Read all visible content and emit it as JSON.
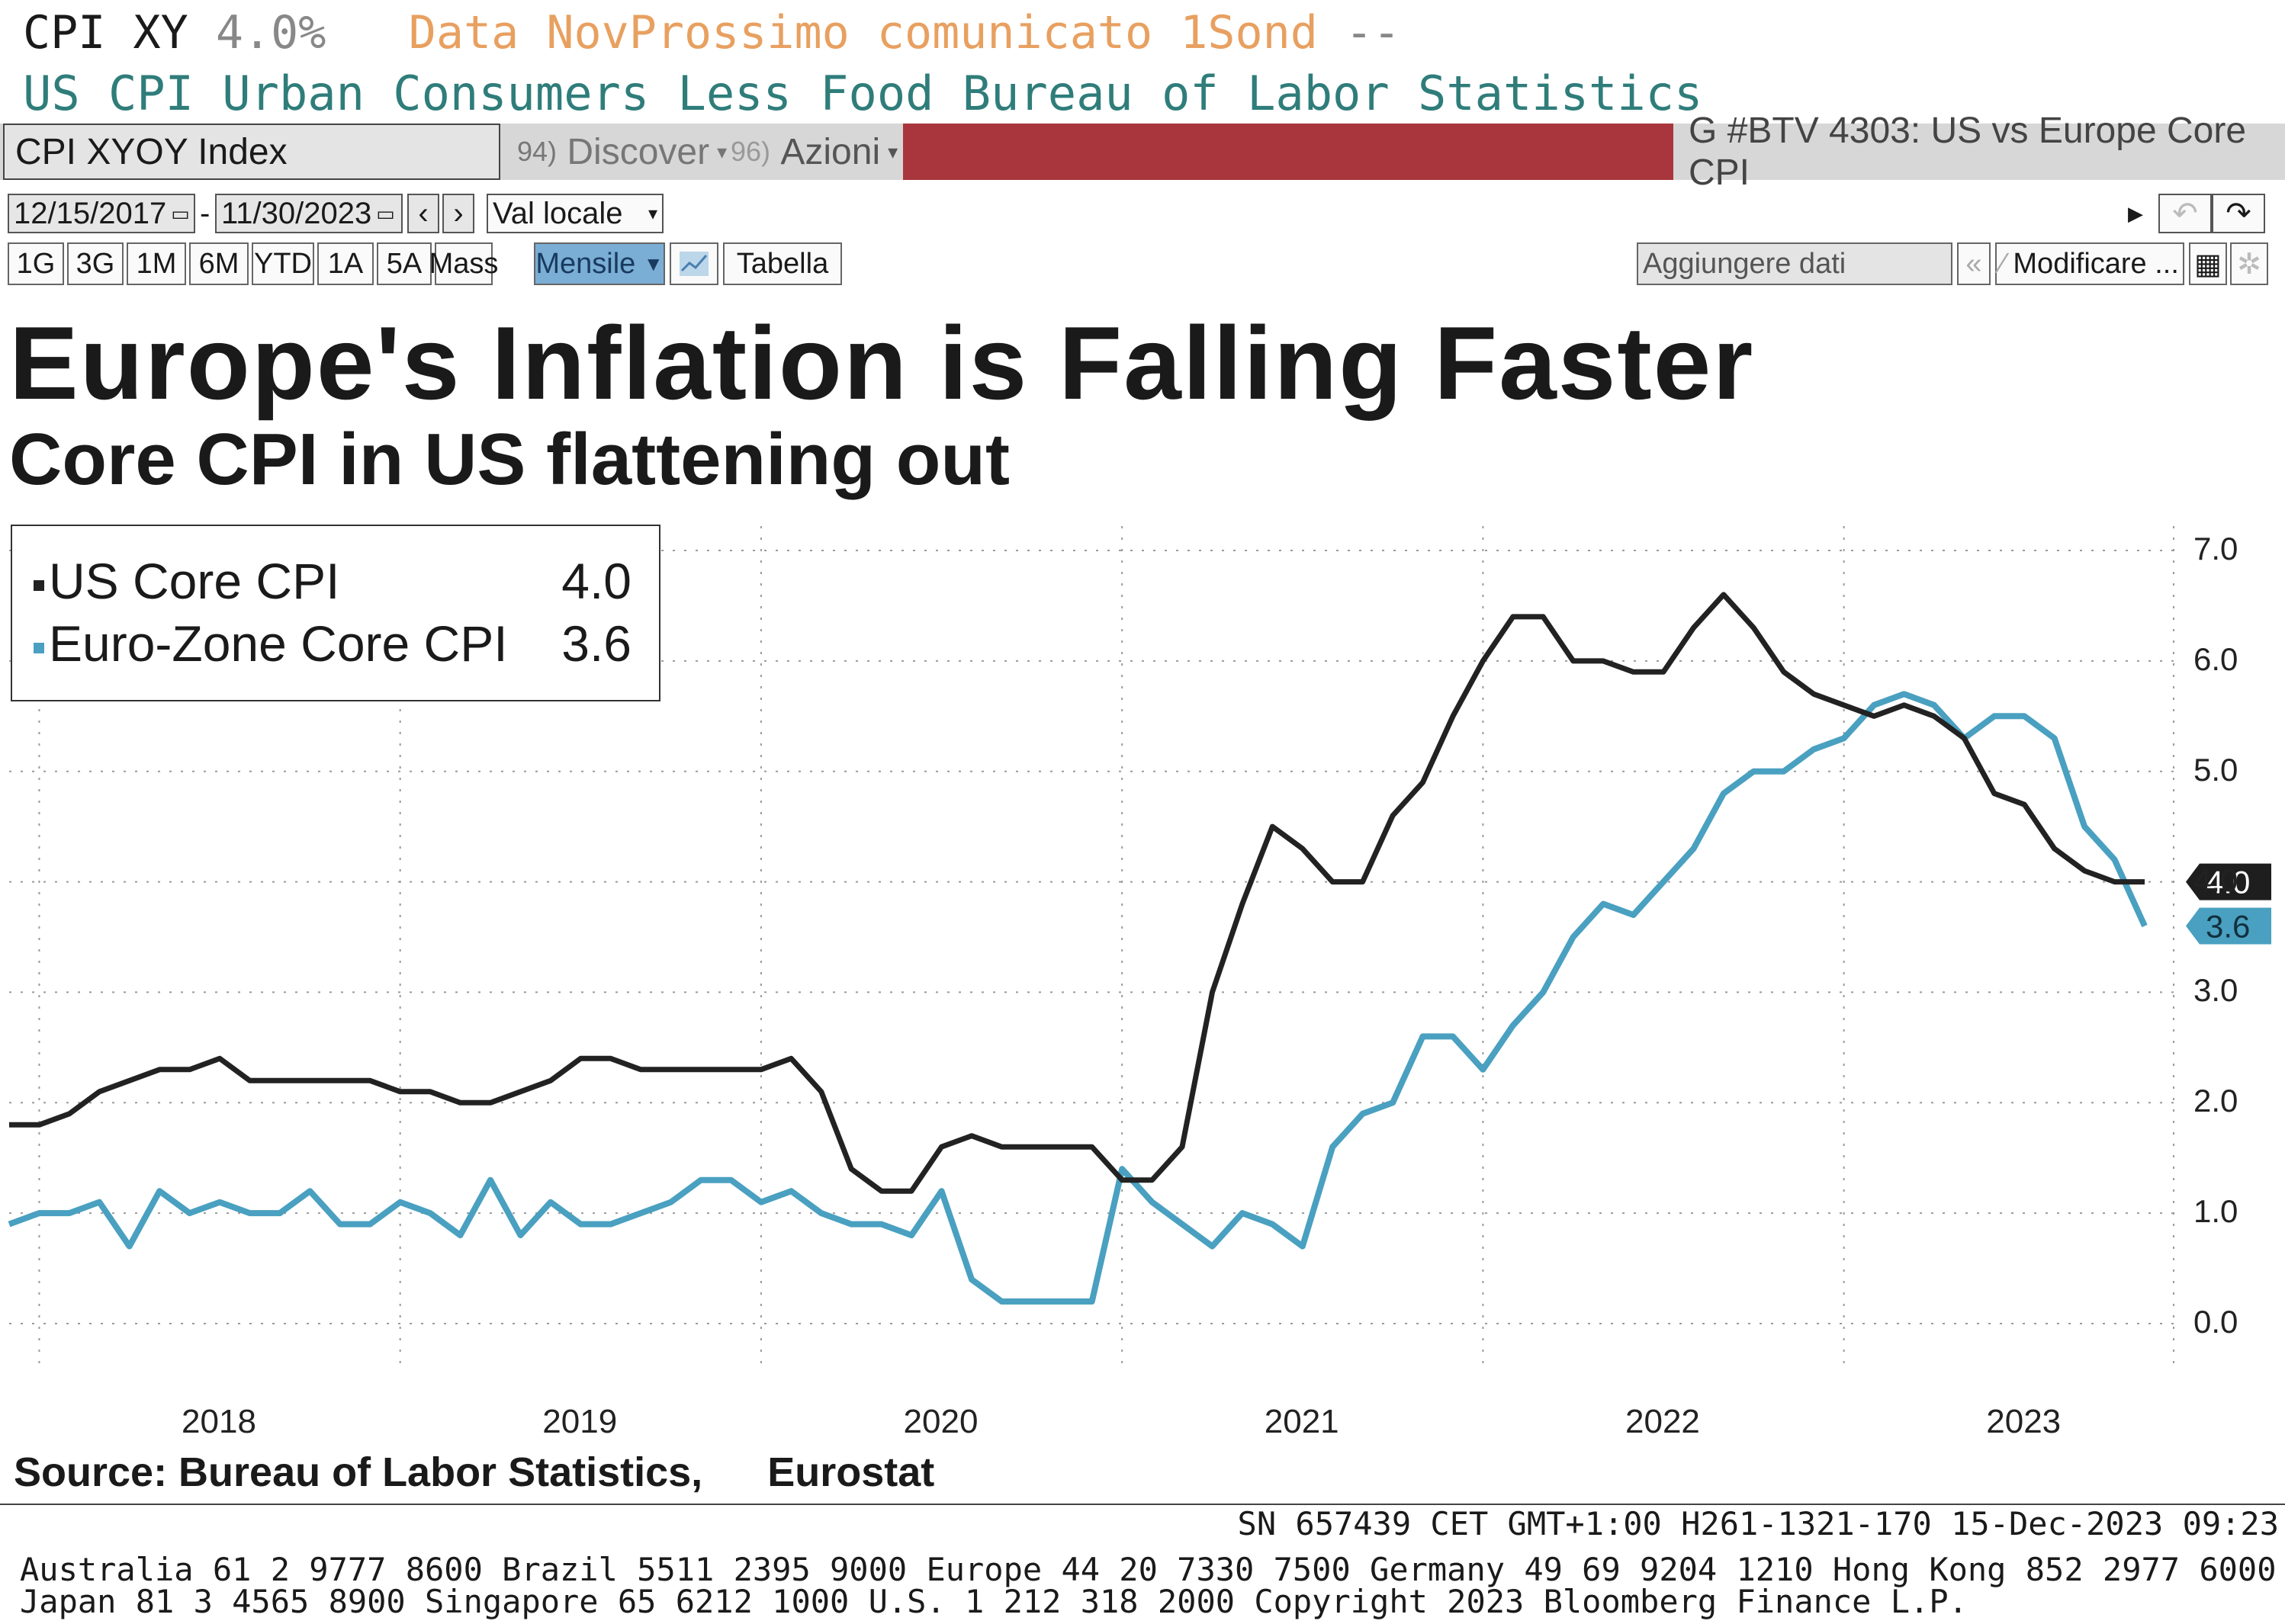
{
  "header": {
    "ticker": "CPI XY",
    "last_value": "4.0%",
    "date_label": "Data Nov",
    "next_release": "Prossimo comunicato 1Sond",
    "dashes": "--",
    "description": "US CPI Urban Consumers Less Food Bureau of Labor Statistics"
  },
  "toolbar": {
    "security": "CPI XYOY Index",
    "discover_num": "94)",
    "discover": "Discover",
    "azioni_num": "96)",
    "azioni": "Azioni",
    "chart_name": "G #BTV 4303: US vs Europe Core CPI",
    "start_date": "12/15/2017",
    "end_date": "11/30/2023",
    "currency": "Val locale",
    "timeframes": [
      "1G",
      "3G",
      "1M",
      "6M",
      "YTD",
      "1A",
      "5A",
      "Mass"
    ],
    "frequency": "Mensile",
    "table": "Tabella",
    "add_data": "Aggiungere dati",
    "edit": "Modificare ..."
  },
  "colors": {
    "us": "#222222",
    "eu": "#4aa0c0",
    "red_bar": "#a8363c",
    "grid": "#9a9a9a"
  },
  "chart_data": {
    "type": "line",
    "title": "Europe's Inflation is Falling Faster",
    "subtitle": "Core CPI in US flattening out",
    "source": "Source: Bureau of Labor Statistics,",
    "source2": "Eurostat",
    "ylim": [
      0,
      7
    ],
    "yticks": [
      "7.0",
      "6.0",
      "5.0",
      "4.0",
      "3.0",
      "2.0",
      "1.0",
      "0.0"
    ],
    "xticks": [
      "2018",
      "2019",
      "2020",
      "2021",
      "2022",
      "2023"
    ],
    "x_start": "2017-12",
    "grid": true,
    "legend_position": "top-left",
    "series": [
      {
        "name": "US Core CPI",
        "last": "4.0",
        "values": [
          1.8,
          1.8,
          1.9,
          2.1,
          2.2,
          2.3,
          2.3,
          2.4,
          2.2,
          2.2,
          2.2,
          2.2,
          2.2,
          2.1,
          2.1,
          2.0,
          2.0,
          2.1,
          2.2,
          2.4,
          2.4,
          2.3,
          2.3,
          2.3,
          2.3,
          2.3,
          2.4,
          2.1,
          1.4,
          1.2,
          1.2,
          1.6,
          1.7,
          1.6,
          1.6,
          1.6,
          1.6,
          1.3,
          1.3,
          1.6,
          3.0,
          3.8,
          4.5,
          4.3,
          4.0,
          4.0,
          4.6,
          4.9,
          5.5,
          6.0,
          6.4,
          6.4,
          6.0,
          6.0,
          5.9,
          5.9,
          6.3,
          6.6,
          6.3,
          5.9,
          5.7,
          5.6,
          5.5,
          5.6,
          5.5,
          5.3,
          4.8,
          4.7,
          4.3,
          4.1,
          4.0,
          4.0
        ]
      },
      {
        "name": "Euro-Zone Core CPI",
        "last": "3.6",
        "values": [
          0.9,
          1.0,
          1.0,
          1.1,
          0.7,
          1.2,
          1.0,
          1.1,
          1.0,
          1.0,
          1.2,
          0.9,
          0.9,
          1.1,
          1.0,
          0.8,
          1.3,
          0.8,
          1.1,
          0.9,
          0.9,
          1.0,
          1.1,
          1.3,
          1.3,
          1.1,
          1.2,
          1.0,
          0.9,
          0.9,
          0.8,
          1.2,
          0.4,
          0.2,
          0.2,
          0.2,
          0.2,
          1.4,
          1.1,
          0.9,
          0.7,
          1.0,
          0.9,
          0.7,
          1.6,
          1.9,
          2.0,
          2.6,
          2.6,
          2.3,
          2.7,
          3.0,
          3.5,
          3.8,
          3.7,
          4.0,
          4.3,
          4.8,
          5.0,
          5.0,
          5.2,
          5.3,
          5.6,
          5.7,
          5.6,
          5.3,
          5.5,
          5.5,
          5.3,
          4.5,
          4.2,
          3.6
        ]
      }
    ]
  },
  "footer": {
    "line1": "SN 657439 CET  GMT+1:00 H261-1321-170 15-Dec-2023 09:23",
    "line2": "Australia 61 2 9777 8600 Brazil 5511 2395 9000 Europe 44 20 7330 7500 Germany 49 69 9204 1210 Hong Kong 852 2977 6000",
    "line3": "Japan 81 3 4565 8900        Singapore 65 6212 1000        U.S. 1 212 318 2000        Copyright 2023 Bloomberg Finance L.P."
  }
}
